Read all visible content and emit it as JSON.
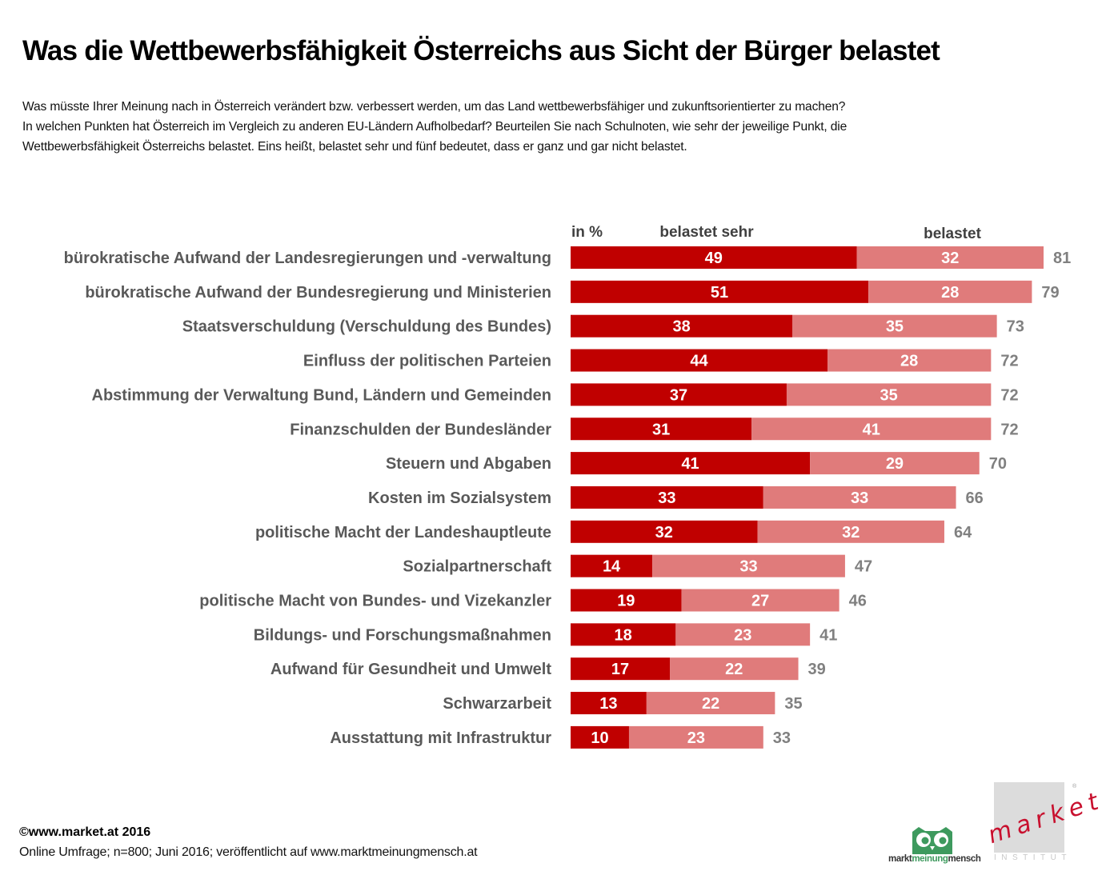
{
  "title": "Was die Wettbewerbsfähigkeit Österreichs aus Sicht der Bürger belastet",
  "question": [
    "Was müsste Ihrer Meinung nach in Österreich verändert bzw. verbessert  werden, um das Land wettbewerbsfähiger  und zukunftsorientierter zu machen?",
    "In welchen Punkten hat Österreich im Vergleich zu anderen EU-Ländern Aufholbedarf? Beurteilen Sie nach Schulnoten, wie sehr der jeweilige Punkt, die",
    "Wettbewerbsfähigkeit Österreichs belastet. Eins heißt, belastet sehr und fünf bedeutet, dass er ganz und gar nicht belastet."
  ],
  "colors": {
    "belastet_sehr": "#c00000",
    "belastet": "#e07b7b",
    "total_label": "#808080",
    "category_label": "#595959"
  },
  "chart_data": {
    "type": "bar",
    "orientation": "horizontal",
    "stacked": true,
    "unit_label": "in %",
    "legend": [
      "belastet sehr",
      "belastet"
    ],
    "legend_placement": "top",
    "categories": [
      "bürokratische Aufwand der Landesregierungen und -verwaltung",
      "bürokratische Aufwand der Bundesregierung und Ministerien",
      "Staatsverschuldung (Verschuldung des Bundes)",
      "Einfluss der politischen Parteien",
      "Abstimmung der Verwaltung  Bund, Ländern und Gemeinden",
      "Finanzschulden der Bundesländer",
      "Steuern und Abgaben",
      "Kosten im Sozialsystem",
      "politische Macht der Landeshauptleute",
      "Sozialpartnerschaft",
      "politische Macht von Bundes- und Vizekanzler",
      "Bildungs- und Forschungsmaßnahmen",
      "Aufwand für Gesundheit und Umwelt",
      "Schwarzarbeit ",
      "Ausstattung mit Infrastruktur"
    ],
    "series": [
      {
        "name": "belastet sehr",
        "values": [
          49,
          51,
          38,
          44,
          37,
          31,
          41,
          33,
          32,
          14,
          19,
          18,
          17,
          13,
          10
        ]
      },
      {
        "name": "belastet",
        "values": [
          32,
          28,
          35,
          28,
          35,
          41,
          29,
          33,
          32,
          33,
          27,
          23,
          22,
          22,
          23
        ]
      }
    ],
    "totals": [
      81,
      79,
      73,
      72,
      72,
      72,
      70,
      66,
      64,
      47,
      46,
      41,
      39,
      35,
      33
    ],
    "xlim": [
      0,
      81
    ],
    "grid": false,
    "axes_visible": false
  },
  "footer": {
    "copyright": "©www.market.at 2016",
    "source": "Online Umfrage; n=800; Juni 2016; veröffentlicht auf www.marktmeinungmensch.at"
  },
  "logos": {
    "mmm_prefix": "markt",
    "mmm_mid": "meinung",
    "mmm_suffix": "mensch",
    "market_word": "market",
    "market_sub": "INSTITUT",
    "market_reg": "®"
  }
}
